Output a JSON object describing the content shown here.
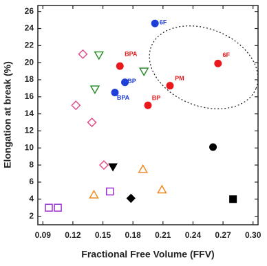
{
  "chart_data": {
    "type": "scatter",
    "xlabel": "Fractional Free Volume (FFV)",
    "ylabel": "Elongation at break (%)",
    "xlim": [
      0.085,
      0.305
    ],
    "ylim": [
      1,
      26.7
    ],
    "xticks": [
      0.09,
      0.12,
      0.15,
      0.18,
      0.21,
      0.24,
      0.27,
      {
        "value": 0.3,
        "label": "0.30"
      }
    ],
    "yticks": [
      2,
      4,
      6,
      8,
      10,
      12,
      14,
      16,
      18,
      20,
      22,
      24,
      26
    ],
    "series": [
      {
        "marker": "circle",
        "filled": true,
        "color": "#1f3fd8",
        "x": [
          0.202,
          0.172,
          0.162
        ],
        "values": [
          24.6,
          17.7,
          16.5
        ],
        "point_labels": [
          "6F",
          "BP",
          "BPA"
        ]
      },
      {
        "marker": "circle",
        "filled": true,
        "color": "#e8191c",
        "x": [
          0.167,
          0.265,
          0.217,
          0.195
        ],
        "values": [
          19.6,
          19.9,
          17.3,
          15.0
        ],
        "point_labels": [
          "BPA",
          "6F",
          "PM",
          "BP"
        ]
      },
      {
        "marker": "triangle-down",
        "filled": false,
        "color": "#2f8f2f",
        "x": [
          0.146,
          0.191,
          0.142
        ],
        "values": [
          20.9,
          19.0,
          16.9
        ]
      },
      {
        "marker": "diamond",
        "filled": false,
        "color": "#e0508c",
        "x": [
          0.13,
          0.123,
          0.139,
          0.151
        ],
        "values": [
          21.0,
          15.0,
          13.0,
          8.0
        ]
      },
      {
        "marker": "triangle-down",
        "filled": true,
        "color": "#000000",
        "x": [
          0.16
        ],
        "values": [
          7.8
        ]
      },
      {
        "marker": "triangle-up",
        "filled": false,
        "color": "#f08a24",
        "x": [
          0.19,
          0.209,
          0.141
        ],
        "values": [
          7.5,
          5.1,
          4.5
        ]
      },
      {
        "marker": "circle",
        "filled": true,
        "color": "#000000",
        "x": [
          0.26
        ],
        "values": [
          10.1
        ]
      },
      {
        "marker": "diamond",
        "filled": true,
        "color": "#000000",
        "x": [
          0.178
        ],
        "values": [
          4.1
        ]
      },
      {
        "marker": "square",
        "filled": true,
        "color": "#000000",
        "x": [
          0.28
        ],
        "values": [
          4.0
        ]
      },
      {
        "marker": "square",
        "filled": false,
        "color": "#9b30d0",
        "x": [
          0.157,
          0.096,
          0.105
        ],
        "values": [
          4.9,
          3.0,
          3.0
        ]
      }
    ]
  }
}
